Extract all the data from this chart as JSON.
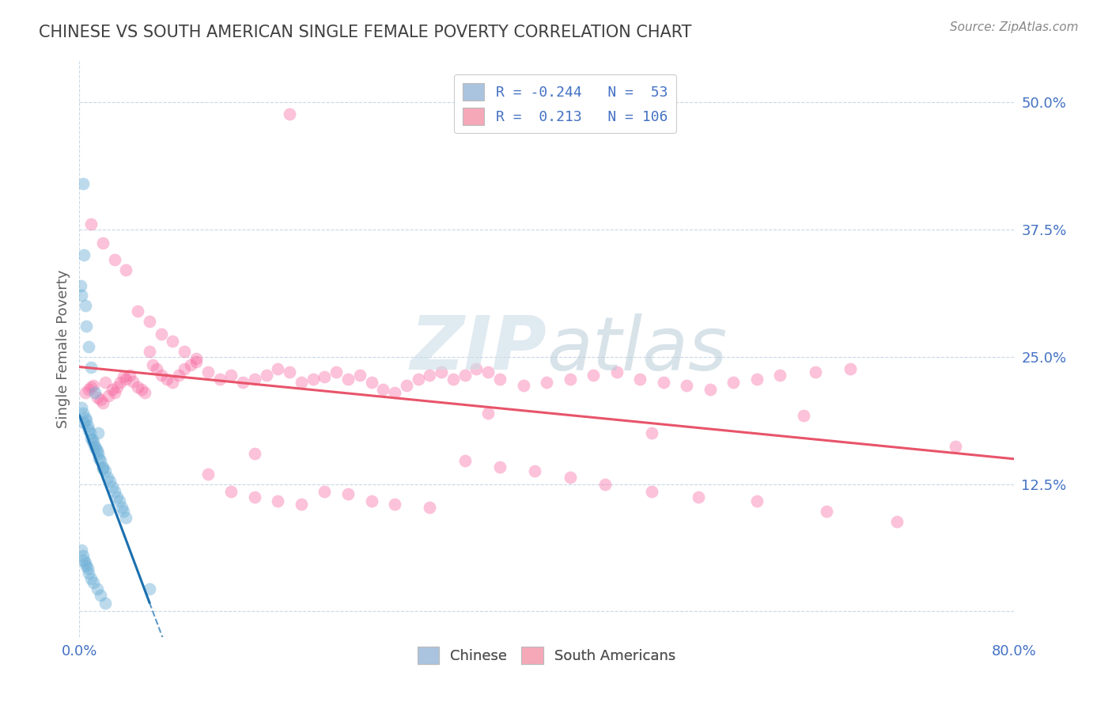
{
  "title": "CHINESE VS SOUTH AMERICAN SINGLE FEMALE POVERTY CORRELATION CHART",
  "source": "Source: ZipAtlas.com",
  "ylabel": "Single Female Poverty",
  "xlim": [
    0.0,
    0.8
  ],
  "ylim": [
    -0.025,
    0.54
  ],
  "yticks_right": [
    0.0,
    0.125,
    0.25,
    0.375,
    0.5
  ],
  "ytick_right_labels": [
    "",
    "12.5%",
    "25.0%",
    "37.5%",
    "50.0%"
  ],
  "legend_entries": [
    {
      "label": "R = -0.244   N =  53",
      "color": "#aac4e0"
    },
    {
      "label": "R =  0.213   N = 106",
      "color": "#f4a8b8"
    }
  ],
  "legend_label_bottom": [
    "Chinese",
    "South Americans"
  ],
  "legend_colors_bottom": [
    "#aac4e0",
    "#f4a8b8"
  ],
  "chinese_R": -0.244,
  "chinese_N": 53,
  "sa_R": 0.213,
  "sa_N": 106,
  "chinese_color": "#6baed6",
  "sa_color": "#f768a1",
  "chinese_line_color": "#1a6faf",
  "sa_line_color": "#e8546a",
  "background_color": "#ffffff",
  "grid_color": "#c8d8e8",
  "title_color": "#404040",
  "title_fontsize": 15,
  "axis_label_color": "#606060",
  "tick_color": "#4472c4",
  "right_tick_color": "#4472c4",
  "chinese_x_points": [
    0.002,
    0.003,
    0.004,
    0.005,
    0.006,
    0.007,
    0.008,
    0.009,
    0.01,
    0.011,
    0.012,
    0.013,
    0.014,
    0.015,
    0.016,
    0.017,
    0.018,
    0.02,
    0.022,
    0.024,
    0.026,
    0.028,
    0.03,
    0.032,
    0.034,
    0.036,
    0.038,
    0.04,
    0.002,
    0.003,
    0.004,
    0.005,
    0.006,
    0.007,
    0.008,
    0.01,
    0.012,
    0.015,
    0.018,
    0.022,
    0.001,
    0.002,
    0.003,
    0.004,
    0.005,
    0.006,
    0.008,
    0.01,
    0.013,
    0.016,
    0.02,
    0.025,
    0.06
  ],
  "chinese_y_points": [
    0.2,
    0.195,
    0.185,
    0.19,
    0.188,
    0.182,
    0.178,
    0.175,
    0.17,
    0.168,
    0.165,
    0.162,
    0.16,
    0.158,
    0.155,
    0.15,
    0.148,
    0.142,
    0.138,
    0.132,
    0.128,
    0.122,
    0.118,
    0.112,
    0.108,
    0.102,
    0.098,
    0.092,
    0.06,
    0.055,
    0.05,
    0.048,
    0.045,
    0.042,
    0.038,
    0.032,
    0.028,
    0.022,
    0.016,
    0.008,
    0.32,
    0.31,
    0.42,
    0.35,
    0.3,
    0.28,
    0.26,
    0.24,
    0.215,
    0.175,
    0.14,
    0.1,
    0.022
  ],
  "sa_x_points": [
    0.005,
    0.008,
    0.01,
    0.012,
    0.015,
    0.018,
    0.02,
    0.022,
    0.025,
    0.028,
    0.03,
    0.032,
    0.035,
    0.038,
    0.04,
    0.043,
    0.046,
    0.05,
    0.053,
    0.056,
    0.06,
    0.063,
    0.066,
    0.07,
    0.075,
    0.08,
    0.085,
    0.09,
    0.095,
    0.1,
    0.11,
    0.12,
    0.13,
    0.14,
    0.15,
    0.16,
    0.17,
    0.18,
    0.19,
    0.2,
    0.21,
    0.22,
    0.23,
    0.24,
    0.25,
    0.26,
    0.27,
    0.28,
    0.29,
    0.3,
    0.31,
    0.32,
    0.33,
    0.34,
    0.35,
    0.36,
    0.38,
    0.4,
    0.42,
    0.44,
    0.46,
    0.48,
    0.5,
    0.52,
    0.54,
    0.56,
    0.58,
    0.6,
    0.63,
    0.66,
    0.01,
    0.02,
    0.03,
    0.04,
    0.05,
    0.06,
    0.07,
    0.08,
    0.09,
    0.1,
    0.11,
    0.13,
    0.15,
    0.17,
    0.19,
    0.21,
    0.23,
    0.25,
    0.27,
    0.3,
    0.33,
    0.36,
    0.39,
    0.42,
    0.45,
    0.49,
    0.53,
    0.58,
    0.64,
    0.7,
    0.18,
    0.35,
    0.49,
    0.62,
    0.75,
    0.15
  ],
  "sa_y_points": [
    0.215,
    0.218,
    0.22,
    0.222,
    0.21,
    0.208,
    0.205,
    0.225,
    0.212,
    0.218,
    0.215,
    0.22,
    0.225,
    0.23,
    0.228,
    0.232,
    0.226,
    0.22,
    0.218,
    0.215,
    0.255,
    0.242,
    0.238,
    0.232,
    0.228,
    0.225,
    0.232,
    0.238,
    0.242,
    0.245,
    0.235,
    0.228,
    0.232,
    0.225,
    0.228,
    0.232,
    0.238,
    0.235,
    0.225,
    0.228,
    0.23,
    0.235,
    0.228,
    0.232,
    0.225,
    0.218,
    0.215,
    0.222,
    0.228,
    0.232,
    0.235,
    0.228,
    0.232,
    0.238,
    0.235,
    0.228,
    0.222,
    0.225,
    0.228,
    0.232,
    0.235,
    0.228,
    0.225,
    0.222,
    0.218,
    0.225,
    0.228,
    0.232,
    0.235,
    0.238,
    0.38,
    0.362,
    0.345,
    0.335,
    0.295,
    0.285,
    0.272,
    0.265,
    0.255,
    0.248,
    0.135,
    0.118,
    0.112,
    0.108,
    0.105,
    0.118,
    0.115,
    0.108,
    0.105,
    0.102,
    0.148,
    0.142,
    0.138,
    0.132,
    0.125,
    0.118,
    0.112,
    0.108,
    0.098,
    0.088,
    0.488,
    0.195,
    0.175,
    0.192,
    0.162,
    0.155
  ]
}
